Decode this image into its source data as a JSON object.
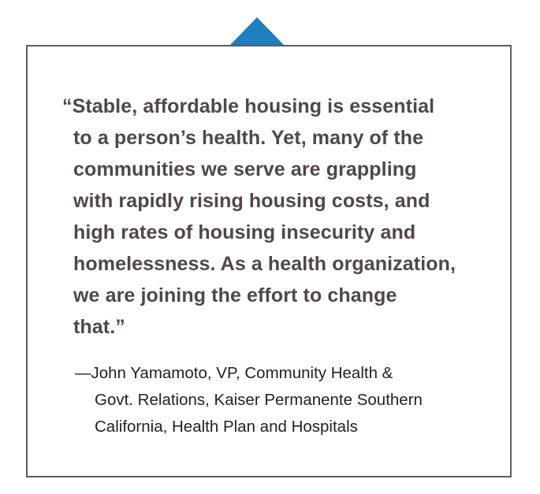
{
  "quote": {
    "lines": [
      "“Stable, affordable housing is essential",
      "to a person’s health. Yet, many of the",
      "communities we serve are grappling",
      "with rapidly rising housing costs, and",
      "high rates of housing insecurity and",
      "homelessness. As a health organization,",
      "we are joining the effort to change",
      "that.”"
    ]
  },
  "attribution": {
    "lines": [
      "—John Yamamoto, VP, Community Health &",
      "Govt. Relations, Kaiser Permanente Southern",
      "California, Health Plan and Hospitals"
    ]
  },
  "colors": {
    "accent": "#1b7fc0",
    "border": "#5e5d5f",
    "quote_text": "#514748",
    "attribution_text": "#231f20"
  }
}
